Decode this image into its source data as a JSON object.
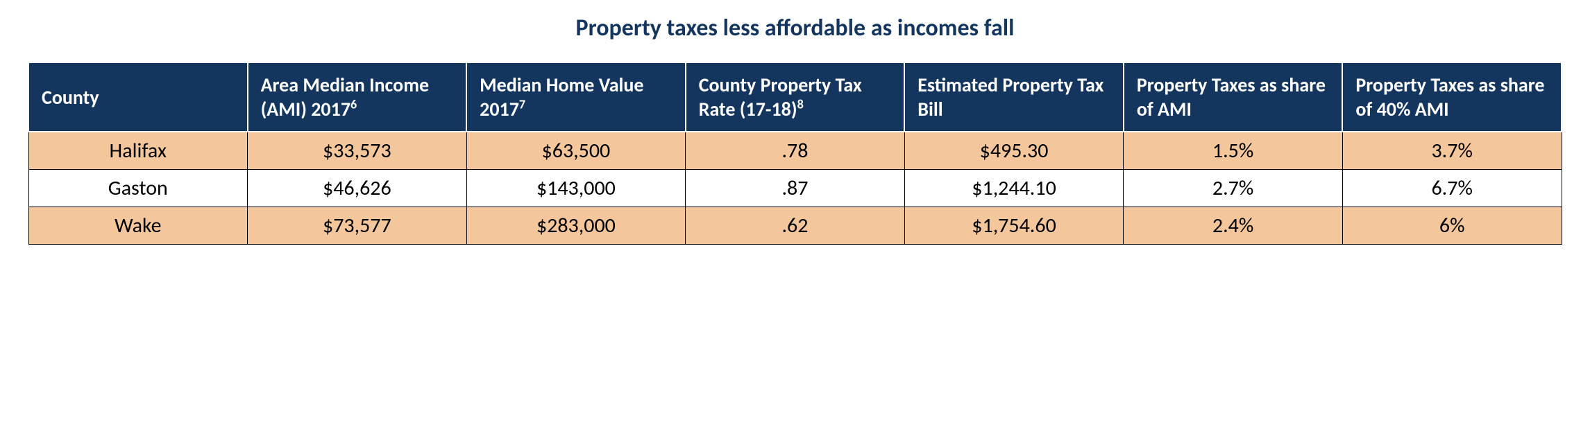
{
  "title": "Property taxes less affordable as incomes fall",
  "title_color": "#14365e",
  "table": {
    "type": "table",
    "header_bg": "#14365e",
    "header_fg": "#ffffff",
    "row_alt_bg": "#f4c69c",
    "row_bg": "#ffffff",
    "cell_border": "#000000",
    "header_border": "#ffffff",
    "header_fontsize": 28,
    "cell_fontsize": 30,
    "columns": [
      {
        "label": "County",
        "sup": ""
      },
      {
        "label": "Area Median Income (AMI) 2017",
        "sup": "6"
      },
      {
        "label": "Median Home Value 2017",
        "sup": "7"
      },
      {
        "label": "County Property Tax Rate (17-18)",
        "sup": "8"
      },
      {
        "label": "Estimated Property Tax Bill",
        "sup": ""
      },
      {
        "label": "Property Taxes as share of AMI",
        "sup": ""
      },
      {
        "label": "Property Taxes as share of 40% AMI",
        "sup": ""
      }
    ],
    "rows": [
      [
        "Halifax",
        "$33,573",
        "$63,500",
        ".78",
        "$495.30",
        "1.5%",
        "3.7%"
      ],
      [
        "Gaston",
        "$46,626",
        "$143,000",
        ".87",
        "$1,244.10",
        "2.7%",
        "6.7%"
      ],
      [
        "Wake",
        "$73,577",
        "$283,000",
        ".62",
        "$1,754.60",
        "2.4%",
        "6%"
      ]
    ]
  }
}
